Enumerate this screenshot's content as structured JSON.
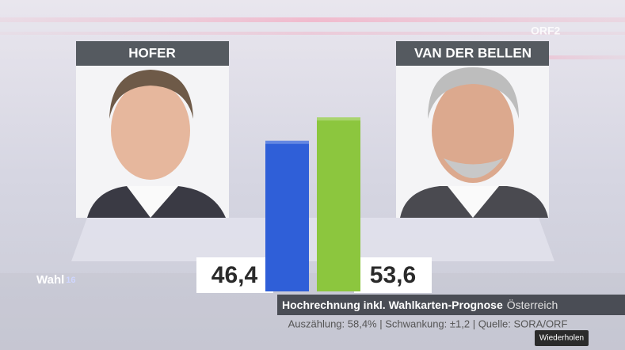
{
  "chart_data": {
    "type": "bar",
    "categories": [
      "HOFER",
      "VAN DER BELLEN"
    ],
    "values": [
      46.4,
      53.6
    ],
    "value_labels": [
      "46,4",
      "53,6"
    ],
    "colors": [
      "#2f5fd8",
      "#8cc63e"
    ],
    "caption": "Hochrechnung inkl. Wahlkarten-Prognose",
    "region": "Österreich",
    "source": "Auszählung: 58,4% | Schwankung: ±1,2 | Quelle: SORA/ORF"
  },
  "logos": {
    "program": "Wahl",
    "program_year": "16",
    "channel": "ORF2"
  },
  "button": "Wiederholen"
}
